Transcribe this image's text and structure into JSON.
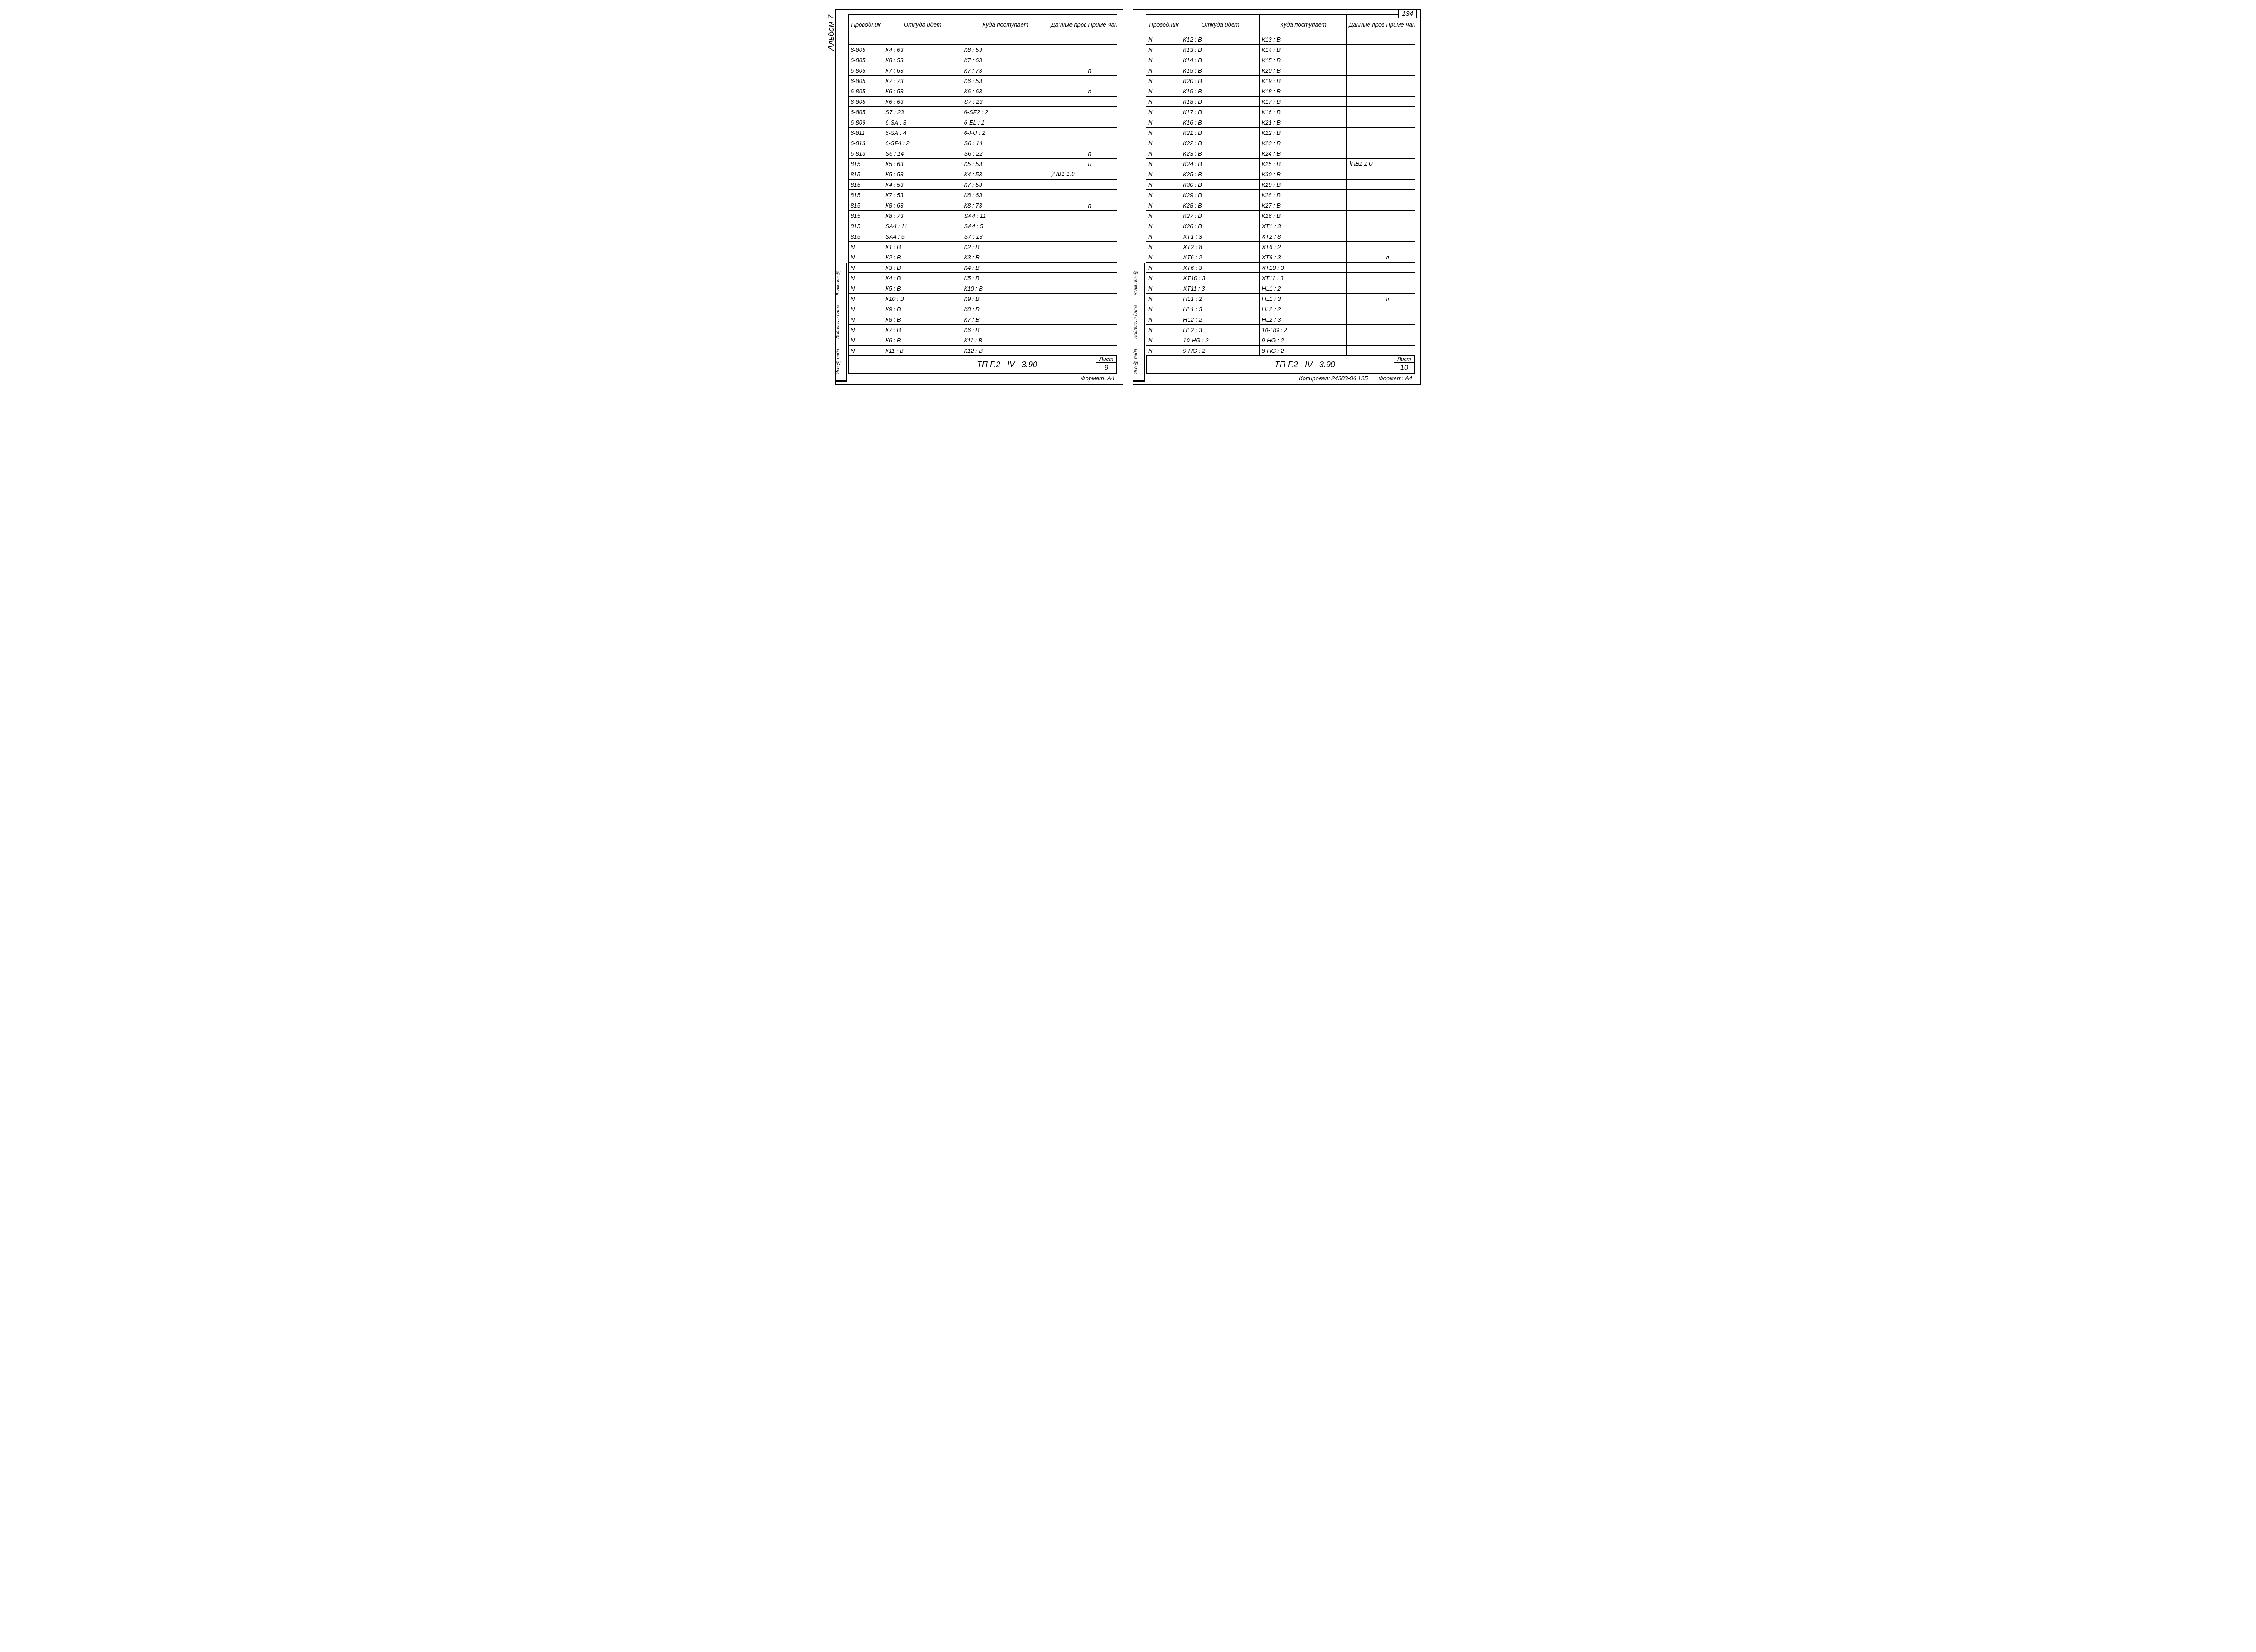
{
  "headers": {
    "conductor": "Проводник",
    "from": "Откуда идет",
    "to": "Куда поступает",
    "wire": "Данные провода",
    "note": "Приме-чание"
  },
  "album_label": "Альбом 7",
  "side_labels": [
    "Взам.инв.№",
    "Подпись и дата",
    "Инв.№ подл."
  ],
  "title_code_prefix": "ТП Г.2 – ",
  "title_code_roman": "IV",
  "title_code_suffix": " – 3.90",
  "sheet_label": "Лист",
  "format_label": "Формат: А4",
  "copied_label": "Копировал: ",
  "copy_num": "24383-06  135",
  "top_page_num": "134",
  "left_page": {
    "sheet_num": "9",
    "rows": [
      {
        "c": "",
        "f": "",
        "t": "",
        "w": "",
        "n": ""
      },
      {
        "c": "6-805",
        "f": "К4 : 63",
        "t": "К8 : 53",
        "w": "",
        "n": ""
      },
      {
        "c": "6-805",
        "f": "К8 : 53",
        "t": "К7 : 63",
        "w": "",
        "n": ""
      },
      {
        "c": "6-805",
        "f": "К7 : 63",
        "t": "К7 : 73",
        "w": "",
        "n": "п"
      },
      {
        "c": "6-805",
        "f": "К7 : 73",
        "t": "К6 : 53",
        "w": "",
        "n": ""
      },
      {
        "c": "6-805",
        "f": "К6 : 53",
        "t": "К6 : 63",
        "w": "",
        "n": "п"
      },
      {
        "c": "6-805",
        "f": "К6 : 63",
        "t": "S7 : 23",
        "w": "",
        "n": ""
      },
      {
        "c": "6-805",
        "f": "S7 : 23",
        "t": "6-SF2 : 2",
        "w": "",
        "n": ""
      },
      {
        "c": "6-809",
        "f": "6-SA : 3",
        "t": "6-EL : 1",
        "w": "",
        "n": ""
      },
      {
        "c": "6-811",
        "f": "6-SA : 4",
        "t": "6-FU : 2",
        "w": "",
        "n": ""
      },
      {
        "c": "6-813",
        "f": "6-SF4 : 2",
        "t": "S6 : 14",
        "w": "",
        "n": ""
      },
      {
        "c": "6-813",
        "f": "S6 : 14",
        "t": "S6 : 22",
        "w": "",
        "n": "п"
      },
      {
        "c": "815",
        "f": "К5 : 63",
        "t": "К5 : 53",
        "w": "",
        "n": "п"
      },
      {
        "c": "815",
        "f": "К5 : 53",
        "t": "К4 : 53",
        "w": "⟩ПВ1 1,0",
        "n": ""
      },
      {
        "c": "815",
        "f": "К4 : 53",
        "t": "К7 : 53",
        "w": "",
        "n": ""
      },
      {
        "c": "815",
        "f": "К7 : 53",
        "t": "К8 : 63",
        "w": "",
        "n": ""
      },
      {
        "c": "815",
        "f": "К8 : 63",
        "t": "К8 : 73",
        "w": "",
        "n": "п"
      },
      {
        "c": "815",
        "f": "К8 : 73",
        "t": "SA4 : 11",
        "w": "",
        "n": ""
      },
      {
        "c": "815",
        "f": "SA4 : 11",
        "t": "SA4 : 5",
        "w": "",
        "n": ""
      },
      {
        "c": "815",
        "f": "SA4 : 5",
        "t": "S7 : 13",
        "w": "",
        "n": ""
      },
      {
        "c": "N",
        "f": "К1 : В",
        "t": "К2 : В",
        "w": "",
        "n": ""
      },
      {
        "c": "N",
        "f": "К2 : В",
        "t": "К3 : В",
        "w": "",
        "n": ""
      },
      {
        "c": "N",
        "f": "К3 : В",
        "t": "К4 : В",
        "w": "",
        "n": ""
      },
      {
        "c": "N",
        "f": "К4 : В",
        "t": "К5 : В",
        "w": "",
        "n": ""
      },
      {
        "c": "N",
        "f": "К5 : В",
        "t": "К10 : В",
        "w": "",
        "n": ""
      },
      {
        "c": "N",
        "f": "К10 : В",
        "t": "К9 : В",
        "w": "",
        "n": ""
      },
      {
        "c": "N",
        "f": "К9 : В",
        "t": "К8 : В",
        "w": "",
        "n": ""
      },
      {
        "c": "N",
        "f": "К8 : В",
        "t": "К7 : В",
        "w": "",
        "n": ""
      },
      {
        "c": "N",
        "f": "К7 : В",
        "t": "К6 : В",
        "w": "",
        "n": ""
      },
      {
        "c": "N",
        "f": "К6 : В",
        "t": "К11 : В",
        "w": "",
        "n": ""
      },
      {
        "c": "N",
        "f": "К11 : В",
        "t": "К12 : В",
        "w": "",
        "n": ""
      }
    ]
  },
  "right_page": {
    "sheet_num": "10",
    "rows": [
      {
        "c": "N",
        "f": "К12 : В",
        "t": "К13 : В",
        "w": "",
        "n": ""
      },
      {
        "c": "N",
        "f": "К13 : В",
        "t": "К14 : В",
        "w": "",
        "n": ""
      },
      {
        "c": "N",
        "f": "К14 : В",
        "t": "К15 : В",
        "w": "",
        "n": ""
      },
      {
        "c": "N",
        "f": "К15 : В",
        "t": "К20 : В",
        "w": "",
        "n": ""
      },
      {
        "c": "N",
        "f": "К20 : В",
        "t": "К19 : В",
        "w": "",
        "n": ""
      },
      {
        "c": "N",
        "f": "К19 : В",
        "t": "К18 : В",
        "w": "",
        "n": ""
      },
      {
        "c": "N",
        "f": "К18 : В",
        "t": "К17 : В",
        "w": "",
        "n": ""
      },
      {
        "c": "N",
        "f": "К17 : В",
        "t": "К16 : В",
        "w": "",
        "n": ""
      },
      {
        "c": "N",
        "f": "К16 : В",
        "t": "К21 : В",
        "w": "",
        "n": ""
      },
      {
        "c": "N",
        "f": "К21 : В",
        "t": "К22 : В",
        "w": "",
        "n": ""
      },
      {
        "c": "N",
        "f": "К22 : В",
        "t": "К23 : В",
        "w": "",
        "n": ""
      },
      {
        "c": "N",
        "f": "К23 : В",
        "t": "К24 : В",
        "w": "",
        "n": ""
      },
      {
        "c": "N",
        "f": "К24 : В",
        "t": "К25 : В",
        "w": "⟩ПВ1 1,0",
        "n": ""
      },
      {
        "c": "N",
        "f": "К25 : В",
        "t": "К30 : В",
        "w": "",
        "n": ""
      },
      {
        "c": "N",
        "f": "К30 : В",
        "t": "К29 : В",
        "w": "",
        "n": ""
      },
      {
        "c": "N",
        "f": "К29 : В",
        "t": "К28 : В",
        "w": "",
        "n": ""
      },
      {
        "c": "N",
        "f": "К28 : В",
        "t": "К27 : В",
        "w": "",
        "n": ""
      },
      {
        "c": "N",
        "f": "К27 : В",
        "t": "К26 : В",
        "w": "",
        "n": ""
      },
      {
        "c": "N",
        "f": "К26 : В",
        "t": "XT1 : 3",
        "w": "",
        "n": ""
      },
      {
        "c": "N",
        "f": "XT1 : 3",
        "t": "XT2 : 8",
        "w": "",
        "n": ""
      },
      {
        "c": "N",
        "f": "XT2 : 8",
        "t": "XT6 : 2",
        "w": "",
        "n": ""
      },
      {
        "c": "N",
        "f": "XT6 : 2",
        "t": "XT6 : 3",
        "w": "",
        "n": "п"
      },
      {
        "c": "N",
        "f": "XT6 : 3",
        "t": "XT10 : 3",
        "w": "",
        "n": ""
      },
      {
        "c": "N",
        "f": "XT10 : 3",
        "t": "XT11 : 3",
        "w": "",
        "n": ""
      },
      {
        "c": "N",
        "f": "XT11 : 3",
        "t": "HL1 : 2",
        "w": "",
        "n": ""
      },
      {
        "c": "N",
        "f": "HL1 : 2",
        "t": "HL1 : 3",
        "w": "",
        "n": "п"
      },
      {
        "c": "N",
        "f": "HL1 : 3",
        "t": "HL2 : 2",
        "w": "",
        "n": ""
      },
      {
        "c": "N",
        "f": "HL2 : 2",
        "t": "HL2 : 3",
        "w": "",
        "n": ""
      },
      {
        "c": "N",
        "f": "HL2 : 3",
        "t": "10-HG : 2",
        "w": "",
        "n": ""
      },
      {
        "c": "N",
        "f": "10-HG : 2",
        "t": "9-HG : 2",
        "w": "",
        "n": ""
      },
      {
        "c": "N",
        "f": "9-HG : 2",
        "t": "8-HG : 2",
        "w": "",
        "n": ""
      }
    ]
  }
}
